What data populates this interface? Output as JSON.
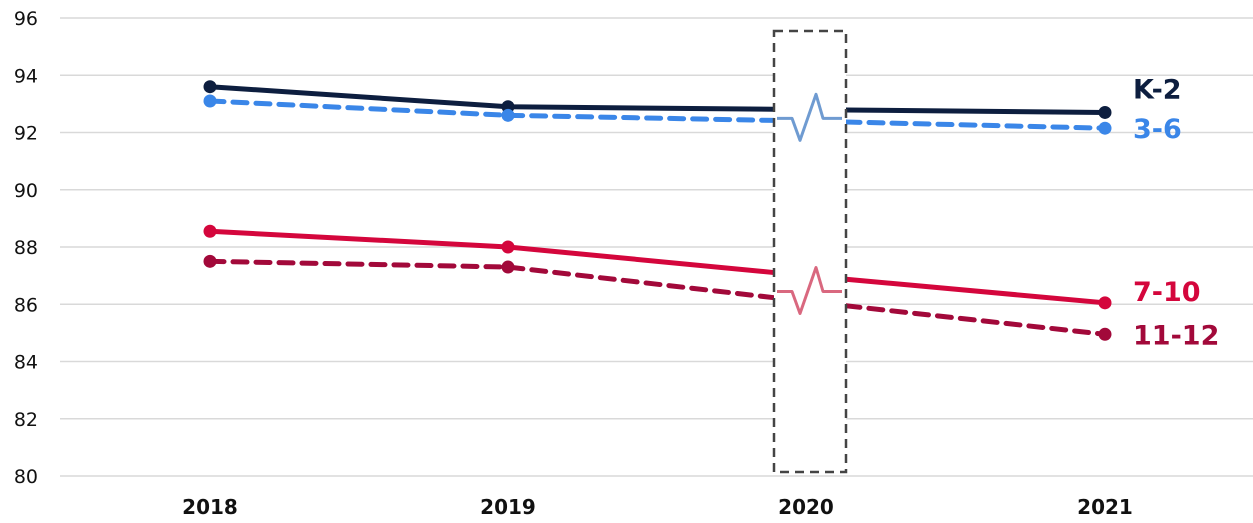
{
  "chart_data": {
    "type": "line",
    "title": "",
    "xlabel": "",
    "ylabel": "",
    "categories": [
      "2018",
      "2019",
      "2020",
      "2021"
    ],
    "ylim": [
      80,
      96
    ],
    "yticks": [
      80,
      82,
      84,
      86,
      88,
      90,
      92,
      94,
      96
    ],
    "grid": "horizontal",
    "legend": "inline labels at right end of lines",
    "highlight_category": "2020",
    "highlight_note": "dashed box with break symbols; 2020 values not plotted as points",
    "series": [
      {
        "name": "K-2",
        "color": "#0d1e3f",
        "dashed": false,
        "values": [
          93.6,
          92.9,
          92.8,
          92.7
        ]
      },
      {
        "name": "3-6",
        "color": "#3a86e8",
        "dashed": true,
        "values": [
          93.1,
          92.6,
          92.4,
          92.15
        ]
      },
      {
        "name": "7-10",
        "color": "#d4063c",
        "dashed": false,
        "values": [
          88.55,
          88.0,
          87.0,
          86.05
        ]
      },
      {
        "name": "11-12",
        "color": "#a2093a",
        "dashed": true,
        "values": [
          87.5,
          87.3,
          86.1,
          84.95
        ]
      }
    ],
    "break_colors": {
      "upper": "#6f9bd1",
      "lower": "#d9687f"
    }
  }
}
